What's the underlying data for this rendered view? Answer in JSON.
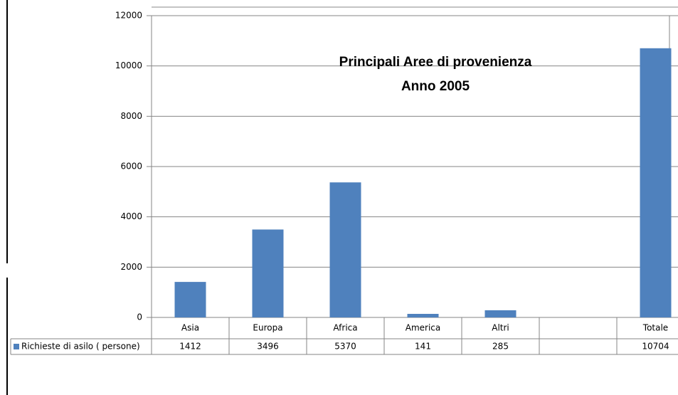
{
  "chart_data": {
    "type": "bar",
    "title": "Principali Aree di provenienza",
    "subtitle": "Anno 2005",
    "categories": [
      "Asia",
      "Europa",
      "Africa",
      "America",
      "Altri",
      null,
      "Totale"
    ],
    "series": [
      {
        "name": "Richieste di asilo ( persone)",
        "color": "#4f81bd",
        "values": [
          1412,
          3496,
          5370,
          141,
          285,
          null,
          10704
        ]
      }
    ],
    "ylim": [
      0,
      12000
    ],
    "yticks": [
      0,
      2000,
      4000,
      6000,
      8000,
      10000,
      12000
    ],
    "grid": true
  }
}
